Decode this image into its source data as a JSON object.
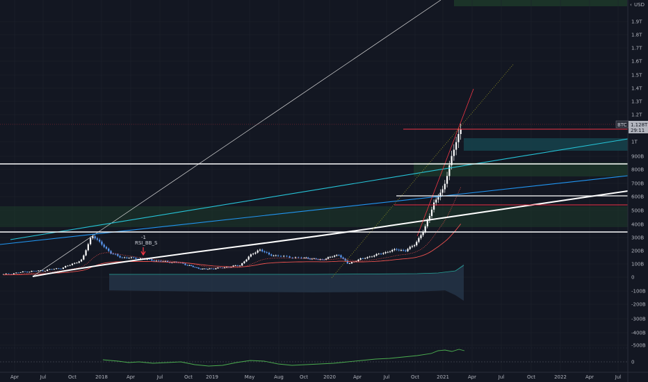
{
  "chart_data": {
    "type": "candlestick",
    "symbol_tag": "BTC",
    "price_tag": "1.128T",
    "countdown_tag": "29:11",
    "currency_label": "USD",
    "annotation": {
      "line1": "-1",
      "line2": "RSI_BB_S"
    },
    "y_axis": {
      "ticks": [
        {
          "v": 1.9,
          "label": "1.9T"
        },
        {
          "v": 1.8,
          "label": "1.8T"
        },
        {
          "v": 1.7,
          "label": "1.7T"
        },
        {
          "v": 1.6,
          "label": "1.6T"
        },
        {
          "v": 1.5,
          "label": "1.5T"
        },
        {
          "v": 1.4,
          "label": "1.4T"
        },
        {
          "v": 1.3,
          "label": "1.3T"
        },
        {
          "v": 1.2,
          "label": "1.2T"
        },
        {
          "v": 1.0,
          "label": "1T"
        },
        {
          "v": 0.9,
          "label": "900B"
        },
        {
          "v": 0.8,
          "label": "800B"
        },
        {
          "v": 0.7,
          "label": "700B"
        },
        {
          "v": 0.6,
          "label": "600B"
        },
        {
          "v": 0.5,
          "label": "500B"
        },
        {
          "v": 0.4,
          "label": "400B"
        },
        {
          "v": 0.3,
          "label": "300B"
        },
        {
          "v": 0.2,
          "label": "200B"
        },
        {
          "v": 0.1,
          "label": "100B"
        },
        {
          "v": 0.0,
          "label": "0"
        },
        {
          "v": -0.1,
          "label": "-100B"
        },
        {
          "v": -0.2,
          "label": "-200B"
        },
        {
          "v": -0.3,
          "label": "-300B"
        },
        {
          "v": -0.4,
          "label": "-400B"
        },
        {
          "v": -0.5,
          "label": "-500B"
        }
      ],
      "ylim": [
        -0.5,
        2.0
      ],
      "unit": "trillion USD"
    },
    "x_axis": {
      "ticks": [
        "Apr",
        "Jul",
        "Oct",
        "2018",
        "Apr",
        "Jul",
        "Oct",
        "2019",
        "May",
        "Aug",
        "Oct",
        "2020",
        "Apr",
        "Jul",
        "Oct",
        "2021",
        "Apr",
        "Jul",
        "Oct",
        "2022",
        "Apr",
        "Jul"
      ],
      "tick_dates": [
        "2017-04",
        "2017-07",
        "2017-10",
        "2018-01",
        "2018-04",
        "2018-07",
        "2018-10",
        "2019-01",
        "2019-05",
        "2019-08",
        "2019-10",
        "2020-01",
        "2020-04",
        "2020-07",
        "2020-10",
        "2021-01",
        "2021-04",
        "2021-07",
        "2021-10",
        "2022-01",
        "2022-04",
        "2022-07"
      ]
    },
    "oscillator_axis": {
      "ticks": [
        {
          "v": 0,
          "label": "0"
        }
      ]
    },
    "series": [
      {
        "kind": "market_cap_close_weekly",
        "points": [
          [
            "2017-03",
            0.02
          ],
          [
            "2017-05",
            0.04
          ],
          [
            "2017-07",
            0.05
          ],
          [
            "2017-09",
            0.07
          ],
          [
            "2017-11",
            0.13
          ],
          [
            "2017-12",
            0.32
          ],
          [
            "2018-01",
            0.25
          ],
          [
            "2018-02",
            0.18
          ],
          [
            "2018-03",
            0.15
          ],
          [
            "2018-05",
            0.14
          ],
          [
            "2018-07",
            0.12
          ],
          [
            "2018-09",
            0.11
          ],
          [
            "2018-11",
            0.07
          ],
          [
            "2018-12",
            0.06
          ],
          [
            "2019-02",
            0.07
          ],
          [
            "2019-04",
            0.09
          ],
          [
            "2019-05",
            0.16
          ],
          [
            "2019-06",
            0.21
          ],
          [
            "2019-07",
            0.17
          ],
          [
            "2019-09",
            0.15
          ],
          [
            "2019-11",
            0.14
          ],
          [
            "2019-12",
            0.13
          ],
          [
            "2020-01",
            0.15
          ],
          [
            "2020-02",
            0.17
          ],
          [
            "2020-03",
            0.1
          ],
          [
            "2020-04",
            0.13
          ],
          [
            "2020-06",
            0.17
          ],
          [
            "2020-08",
            0.21
          ],
          [
            "2020-09",
            0.2
          ],
          [
            "2020-10",
            0.25
          ],
          [
            "2020-11",
            0.36
          ],
          [
            "2020-12",
            0.55
          ],
          [
            "2021-01",
            0.65
          ],
          [
            "2021-02",
            0.92
          ],
          [
            "2021-02-20",
            1.05
          ],
          [
            "2021-03",
            1.128
          ]
        ]
      }
    ],
    "horizontal_levels": [
      {
        "value": 0.85,
        "color": "#ffffff"
      },
      {
        "value": 0.33,
        "color": "#ffffff"
      },
      {
        "value": 0.6,
        "color": "#ffffff"
      },
      {
        "value": 1.09,
        "color": "#f23645"
      },
      {
        "value": 0.54,
        "color": "#f23645"
      }
    ],
    "colors": {
      "background": "#131722",
      "candle_up": "#ffffff",
      "candle_down": "#5b9cf6",
      "trend_cyan": "#26c6da",
      "trend_blue": "#2196f3",
      "support_white": "#ffffff",
      "red": "#f23645",
      "green_zone": "#1e3b2a",
      "teal_zone": "#16404a",
      "band_fill": "#243447",
      "oscillator": "#4caf50"
    }
  }
}
